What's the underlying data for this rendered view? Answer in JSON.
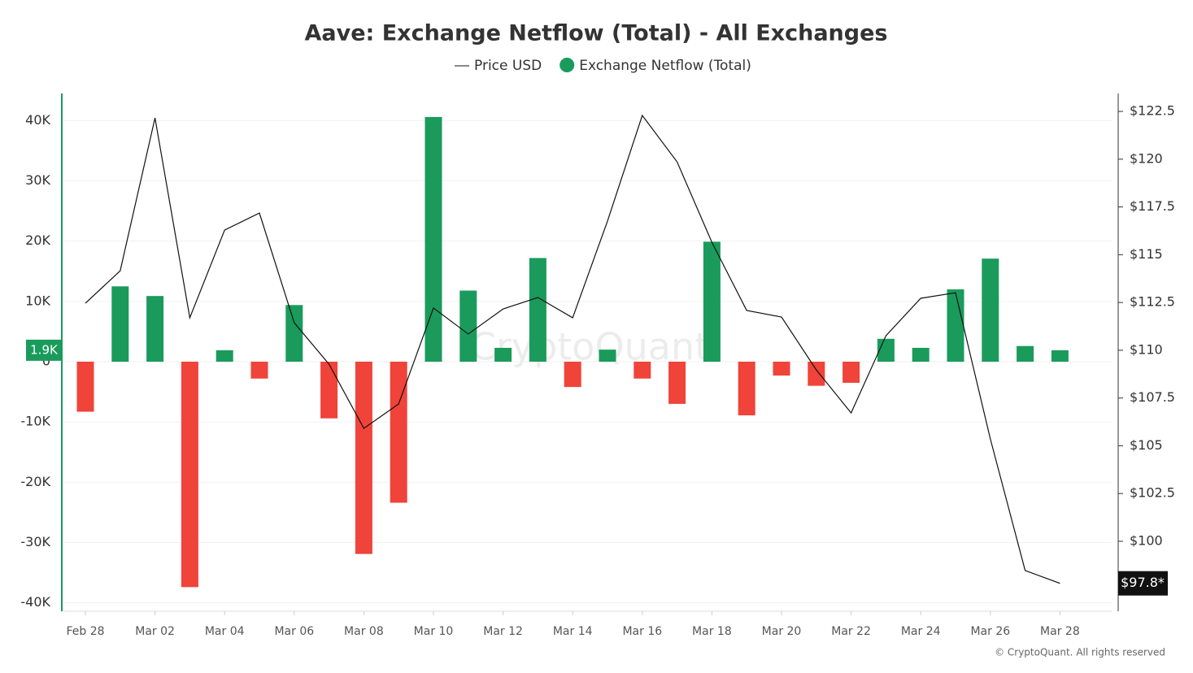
{
  "chart_data": {
    "type": "bar",
    "title": "Aave: Exchange Netflow (Total) - All Exchanges",
    "categories": [
      "Feb 28",
      null,
      "Mar 02",
      null,
      "Mar 04",
      null,
      "Mar 06",
      null,
      "Mar 08",
      null,
      "Mar 10",
      null,
      "Mar 12",
      null,
      "Mar 14",
      null,
      "Mar 16",
      null,
      "Mar 18",
      null,
      "Mar 20",
      null,
      "Mar 22",
      null,
      "Mar 24",
      null,
      "Mar 26",
      null,
      "Mar 28"
    ],
    "series": [
      {
        "name": "Price USD",
        "type": "line",
        "color": "#111111",
        "axis": "y2",
        "values": [
          112.46,
          114.16,
          122.16,
          111.7,
          116.29,
          117.18,
          111.44,
          109.27,
          105.91,
          107.19,
          112.21,
          110.85,
          112.16,
          112.76,
          111.7,
          116.76,
          122.29,
          119.86,
          115.65,
          112.08,
          111.74,
          108.97,
          106.72,
          110.76,
          112.72,
          113.01,
          105.36,
          98.47,
          97.8
        ],
        "current_label": "$97.8*"
      },
      {
        "name": "Exchange Netflow (Total)",
        "type": "bar",
        "color": "#1a9b5c",
        "negative_color": "#f0433a",
        "values": [
          -8300,
          12500,
          10900,
          -37400,
          1900,
          -2800,
          9400,
          -9400,
          -31900,
          -23400,
          40600,
          11800,
          2300,
          17200,
          -4200,
          2000,
          -2800,
          -7000,
          19900,
          -8900,
          -2300,
          -4000,
          -3500,
          3800,
          2300,
          12000,
          17100,
          2600,
          1900
        ],
        "current_label": "1.9K"
      }
    ],
    "ylim": [
      -41400,
      44500
    ],
    "yticks": [
      {
        "value": -40000,
        "label": "-40K"
      },
      {
        "value": -30000,
        "label": "-30K"
      },
      {
        "value": -20000,
        "label": "-20K"
      },
      {
        "value": -10000,
        "label": "-10K"
      },
      0,
      {
        "value": 10000,
        "label": "10K"
      },
      {
        "value": 20000,
        "label": "20K"
      },
      {
        "value": 30000,
        "label": "30K"
      },
      {
        "value": 40000,
        "label": "40K"
      }
    ],
    "y2lim": [
      96.34,
      123.44
    ],
    "y2ticks": [
      {
        "value": 100,
        "label": "$100"
      },
      {
        "value": 102.5,
        "label": "$102.5"
      },
      {
        "value": 105,
        "label": "$105"
      },
      {
        "value": 107.5,
        "label": "$107.5"
      },
      {
        "value": 110,
        "label": "$110"
      },
      {
        "value": 112.5,
        "label": "$112.5"
      },
      {
        "value": 115,
        "label": "$115"
      },
      {
        "value": 117.5,
        "label": "$117.5"
      },
      {
        "value": 120,
        "label": "$120"
      },
      {
        "value": 122.5,
        "label": "$122.5"
      }
    ],
    "grid": true,
    "watermark": "CryptoQuant",
    "credit": "© CryptoQuant. All rights reserved"
  }
}
